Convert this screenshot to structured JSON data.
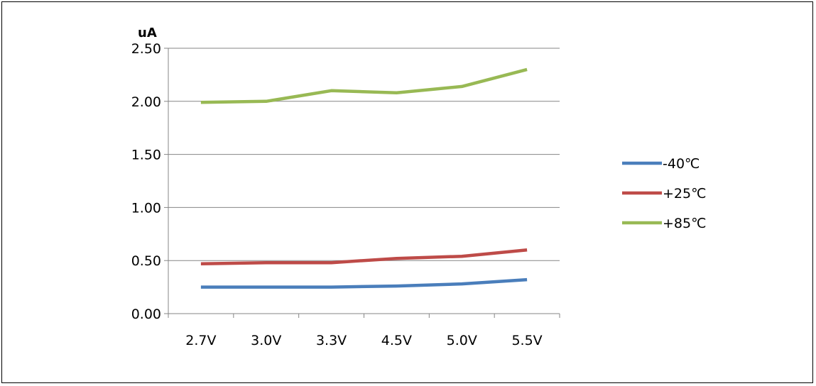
{
  "chart_data": {
    "type": "line",
    "title": "",
    "xlabel": "",
    "ylabel": "uA",
    "categories": [
      "2.7V",
      "3.0V",
      "3.3V",
      "4.5V",
      "5.0V",
      "5.5V"
    ],
    "ylim": [
      0,
      2.5
    ],
    "yticks": [
      "0.00",
      "0.50",
      "1.00",
      "1.50",
      "2.00",
      "2.50"
    ],
    "grid": true,
    "legend_position": "right",
    "series": [
      {
        "name": "-40℃",
        "color": "#4a7ebb",
        "values": [
          0.25,
          0.25,
          0.25,
          0.26,
          0.28,
          0.32
        ]
      },
      {
        "name": "+25℃",
        "color": "#be4b48",
        "values": [
          0.47,
          0.48,
          0.48,
          0.52,
          0.54,
          0.6
        ]
      },
      {
        "name": "+85℃",
        "color": "#98b954",
        "values": [
          1.99,
          2.0,
          2.1,
          2.08,
          2.14,
          2.3
        ]
      }
    ]
  }
}
